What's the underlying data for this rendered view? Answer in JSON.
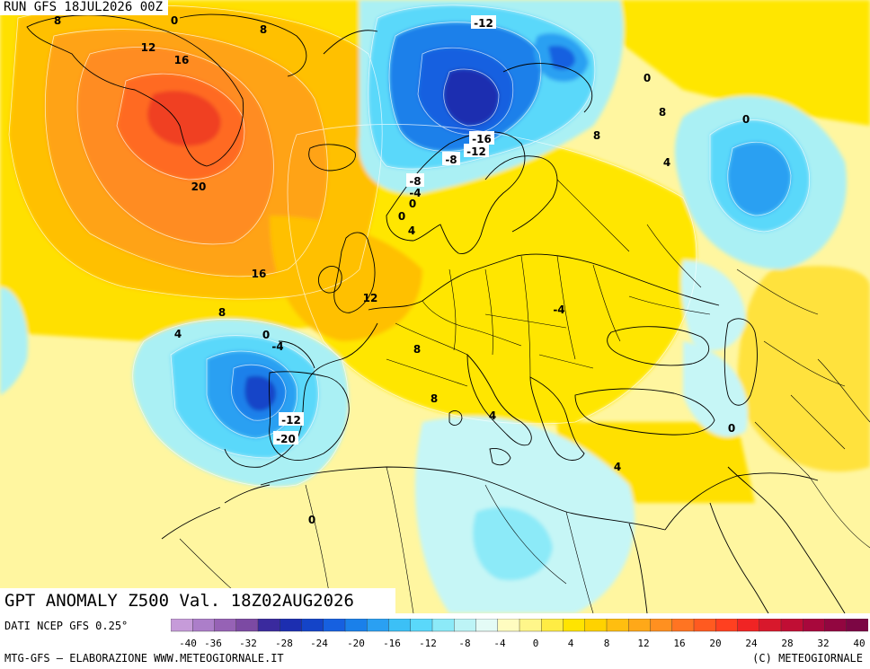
{
  "header": {
    "run": "RUN GFS 18JUL2026 00Z"
  },
  "title": "GPT ANOMALY Z500 Val. 18Z02AUG2026",
  "source": "DATI NCEP GFS 0.25°",
  "credit_left": "MTG-GFS — ELABORAZIONE WWW.METEOGIORNALE.IT",
  "credit_right": "(C) METEOGIORNALE",
  "colorbar": {
    "tick_labels": [
      "-40",
      "-36",
      "-32",
      "-28",
      "-24",
      "-20",
      "-16",
      "-12",
      "-8",
      "-4",
      "0",
      "4",
      "8",
      "12",
      "16",
      "20",
      "24",
      "28",
      "32",
      "40"
    ],
    "colors": [
      "#c69bd9",
      "#ac7ec9",
      "#9662b5",
      "#7c4aa3",
      "#3a2a9e",
      "#1c2eb0",
      "#1444c8",
      "#1660e0",
      "#1a80ea",
      "#2aa0f2",
      "#3cc0f6",
      "#5ad8fa",
      "#8ceaf8",
      "#bdf4f6",
      "#e4fbf6",
      "#fffcc0",
      "#fff68a",
      "#ffec44",
      "#ffe400",
      "#ffd200",
      "#ffbe10",
      "#ffa818",
      "#ff9020",
      "#ff7422",
      "#ff5a20",
      "#ff4020",
      "#f02424",
      "#d8182c",
      "#c00e34",
      "#a8083c",
      "#920640",
      "#7c0644"
    ]
  },
  "contour_labels": [
    {
      "text": "8"
    },
    {
      "text": "0"
    },
    {
      "text": "12"
    },
    {
      "text": "8"
    },
    {
      "text": "16"
    },
    {
      "text": "20"
    },
    {
      "text": "16"
    },
    {
      "text": "8"
    },
    {
      "text": "4"
    },
    {
      "text": "0"
    },
    {
      "text": "-4"
    },
    {
      "text": "12"
    },
    {
      "text": "-12"
    },
    {
      "text": "-8"
    },
    {
      "text": "0"
    },
    {
      "text": "-12"
    },
    {
      "text": "-20"
    },
    {
      "text": "-16"
    },
    {
      "text": "-12"
    },
    {
      "text": "-8"
    },
    {
      "text": "-4"
    },
    {
      "text": "0"
    },
    {
      "text": "4"
    },
    {
      "text": "8"
    },
    {
      "text": "0"
    },
    {
      "text": "8"
    },
    {
      "text": "4"
    },
    {
      "text": "0"
    },
    {
      "text": "-4"
    },
    {
      "text": "8"
    },
    {
      "text": "8"
    },
    {
      "text": "4"
    },
    {
      "text": "0"
    },
    {
      "text": "0"
    },
    {
      "text": "4"
    },
    {
      "text": "0"
    }
  ]
}
